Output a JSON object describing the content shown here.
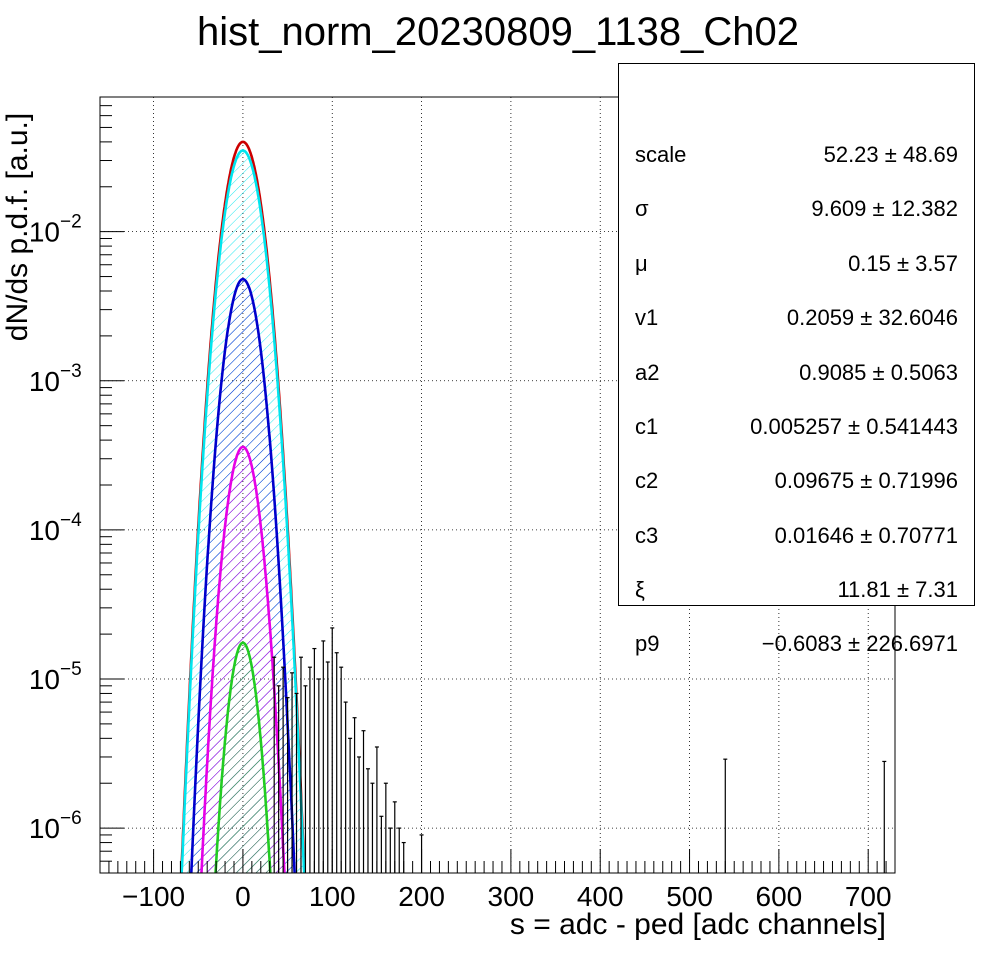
{
  "title": "hist_norm_20230809_1138_Ch02",
  "xlabel": "s = adc - ped [adc channels]",
  "ylabel": "dN/ds p.d.f. [a.u.]",
  "stats": [
    {
      "name": "scale",
      "value": "52.23 ± 48.69"
    },
    {
      "name": "σ",
      "value": "9.609 ± 12.382"
    },
    {
      "name": "μ",
      "value": "0.15 ± 3.57"
    },
    {
      "name": "v1",
      "value": "0.2059 ± 32.6046"
    },
    {
      "name": "a2",
      "value": "0.9085 ± 0.5063"
    },
    {
      "name": "c1",
      "value": "0.005257 ± 0.541443"
    },
    {
      "name": "c2",
      "value": "0.09675 ± 0.71996"
    },
    {
      "name": "c3",
      "value": "0.01646 ± 0.70771"
    },
    {
      "name": "ξ",
      "value": "11.81 ± 7.31"
    },
    {
      "name": "p9",
      "value": "−0.6083 ± 226.6971"
    }
  ],
  "chart_data": {
    "type": "line",
    "title": "hist_norm_20230809_1138_Ch02",
    "xlabel": "s = adc - ped [adc channels]",
    "ylabel": "dN/ds p.d.f. [a.u.]",
    "xlim": [
      -160,
      730
    ],
    "ylim": [
      5e-07,
      0.08
    ],
    "yscale": "log",
    "grid": true,
    "x_ticks": [
      -100,
      0,
      100,
      200,
      300,
      400,
      500,
      600,
      700
    ],
    "y_ticks": [
      {
        "value": 1e-06,
        "label": "10",
        "exp": "−6"
      },
      {
        "value": 1e-05,
        "label": "10",
        "exp": "−5"
      },
      {
        "value": 0.0001,
        "label": "10",
        "exp": "−4"
      },
      {
        "value": 0.001,
        "label": "10",
        "exp": "−3"
      },
      {
        "value": 0.01,
        "label": "10",
        "exp": "−2"
      }
    ],
    "series": [
      {
        "color": "#cc0000",
        "kind": "gauss",
        "mu": 0,
        "sigma": 14.5,
        "peak": 0.04,
        "hatch": false
      },
      {
        "color": "#00e5ee",
        "kind": "gauss",
        "mu": 0,
        "sigma": 14.5,
        "peak": 0.035,
        "hatch": true
      },
      {
        "color": "#0000cc",
        "kind": "gauss",
        "mu": 0,
        "sigma": 13.5,
        "peak": 0.0048,
        "hatch": true
      },
      {
        "color": "#e600e6",
        "kind": "gauss",
        "mu": 0,
        "sigma": 12.8,
        "peak": 0.00036,
        "hatch": true
      },
      {
        "color": "#22cc22",
        "kind": "gauss",
        "mu": 0,
        "sigma": 11.5,
        "peak": 1.75e-05,
        "hatch": true
      }
    ],
    "data_histogram": {
      "color": "#000000",
      "x": [
        35,
        40,
        45,
        50,
        55,
        60,
        65,
        70,
        75,
        80,
        85,
        90,
        95,
        100,
        105,
        110,
        115,
        120,
        125,
        130,
        135,
        140,
        145,
        150,
        155,
        160,
        165,
        170,
        175,
        180,
        200,
        540,
        718
      ],
      "y": [
        1.4e-05,
        9e-06,
        1.2e-05,
        7.5e-06,
        1.1e-05,
        8e-06,
        1.4e-05,
        9e-06,
        1.2e-05,
        1.6e-05,
        1e-05,
        1.8e-05,
        1.3e-05,
        2.2e-05,
        1.5e-05,
        1.2e-05,
        7e-06,
        4e-06,
        5.5e-06,
        3e-06,
        4.5e-06,
        2.5e-06,
        2e-06,
        3.5e-06,
        1.2e-06,
        2e-06,
        1e-06,
        1.5e-06,
        1e-06,
        8e-07,
        9e-07,
        2.9e-06,
        2.8e-06
      ]
    }
  }
}
